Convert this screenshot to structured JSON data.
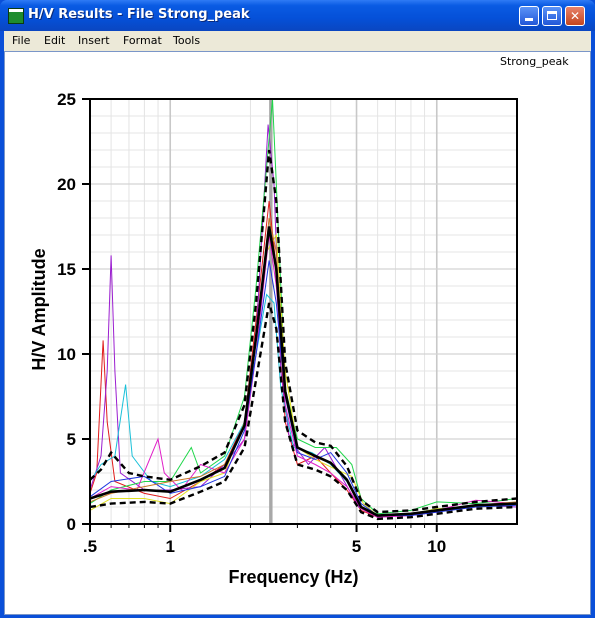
{
  "window": {
    "title": "H/V Results - File Strong_peak",
    "icons": {
      "app": "graph-app-icon",
      "minimize": "minimize-icon",
      "maximize": "maximize-icon",
      "close": "close-icon"
    }
  },
  "menu": {
    "items": [
      "File",
      "Edit",
      "Insert",
      "Format",
      "Tools"
    ]
  },
  "file_label": "Strong_peak",
  "colors": {
    "titlebar": "#0550d8",
    "mean": "#000000",
    "peak_band": "#a8a8a8"
  },
  "chart_data": {
    "type": "line",
    "xlabel": "Frequency (Hz)",
    "ylabel": "H/V Amplitude",
    "x_scale": "log",
    "xlim": [
      0.5,
      20
    ],
    "ylim": [
      0,
      25
    ],
    "x_ticks": [
      {
        "value": 0.5,
        "label": ".5"
      },
      {
        "value": 1,
        "label": "1"
      },
      {
        "value": 5,
        "label": "5"
      },
      {
        "value": 10,
        "label": "10"
      }
    ],
    "y_ticks": [
      {
        "value": 0,
        "label": "0"
      },
      {
        "value": 5,
        "label": "5"
      },
      {
        "value": 10,
        "label": "10"
      },
      {
        "value": 15,
        "label": "15"
      },
      {
        "value": 20,
        "label": "20"
      },
      {
        "value": 25,
        "label": "25"
      }
    ],
    "grid": true,
    "peak_band": [
      2.35,
      2.42
    ],
    "windows": [
      {
        "color": "#e01c1c",
        "points": [
          [
            0.5,
            1.8
          ],
          [
            0.53,
            3
          ],
          [
            0.56,
            10.8
          ],
          [
            0.58,
            6
          ],
          [
            0.62,
            2.5
          ],
          [
            0.8,
            1.8
          ],
          [
            1.0,
            1.5
          ],
          [
            1.3,
            2.5
          ],
          [
            1.6,
            3.5
          ],
          [
            1.9,
            6
          ],
          [
            2.1,
            12
          ],
          [
            2.35,
            19
          ],
          [
            2.5,
            15
          ],
          [
            2.7,
            6
          ],
          [
            3.0,
            3.5
          ],
          [
            3.5,
            4
          ],
          [
            4.0,
            3
          ],
          [
            4.6,
            2
          ],
          [
            5.2,
            0.8
          ],
          [
            6,
            0.4
          ],
          [
            8,
            0.6
          ],
          [
            10,
            0.8
          ],
          [
            14,
            1.0
          ],
          [
            20,
            1.2
          ]
        ]
      },
      {
        "color": "#9b1ed0",
        "points": [
          [
            0.5,
            2
          ],
          [
            0.55,
            4
          ],
          [
            0.58,
            9
          ],
          [
            0.6,
            15.8
          ],
          [
            0.62,
            9
          ],
          [
            0.65,
            3
          ],
          [
            0.8,
            2
          ],
          [
            1.0,
            2
          ],
          [
            1.3,
            2.2
          ],
          [
            1.6,
            3.5
          ],
          [
            1.9,
            5
          ],
          [
            2.1,
            11
          ],
          [
            2.33,
            23.5
          ],
          [
            2.45,
            20
          ],
          [
            2.6,
            9
          ],
          [
            2.8,
            5
          ],
          [
            3.3,
            3.5
          ],
          [
            3.8,
            4.5
          ],
          [
            4.5,
            2.5
          ],
          [
            5.1,
            1
          ],
          [
            6,
            0.4
          ],
          [
            8,
            0.5
          ],
          [
            10,
            0.7
          ],
          [
            14,
            1.1
          ],
          [
            20,
            1.0
          ]
        ]
      },
      {
        "color": "#19c0d8",
        "points": [
          [
            0.5,
            2.5
          ],
          [
            0.55,
            3.5
          ],
          [
            0.62,
            4
          ],
          [
            0.68,
            8.2
          ],
          [
            0.72,
            4
          ],
          [
            0.85,
            2.5
          ],
          [
            1.0,
            2.2
          ],
          [
            1.3,
            2.8
          ],
          [
            1.6,
            3.8
          ],
          [
            1.9,
            6
          ],
          [
            2.1,
            10
          ],
          [
            2.3,
            13.5
          ],
          [
            2.45,
            13
          ],
          [
            2.6,
            8
          ],
          [
            2.9,
            4.5
          ],
          [
            3.4,
            4.2
          ],
          [
            4.0,
            3.5
          ],
          [
            4.6,
            2.5
          ],
          [
            5.2,
            1
          ],
          [
            6,
            0.5
          ],
          [
            8,
            0.6
          ],
          [
            10,
            0.9
          ],
          [
            14,
            1.0
          ],
          [
            20,
            1.3
          ]
        ]
      },
      {
        "color": "#1fd64a",
        "points": [
          [
            0.5,
            1.2
          ],
          [
            0.6,
            2
          ],
          [
            0.8,
            2.5
          ],
          [
            1.0,
            2.5
          ],
          [
            1.2,
            4.5
          ],
          [
            1.3,
            3
          ],
          [
            1.6,
            4
          ],
          [
            1.9,
            7.5
          ],
          [
            2.1,
            14
          ],
          [
            2.3,
            21
          ],
          [
            2.42,
            25
          ],
          [
            2.55,
            17
          ],
          [
            2.7,
            8
          ],
          [
            3.0,
            5
          ],
          [
            3.5,
            4.5
          ],
          [
            4.2,
            4.5
          ],
          [
            4.8,
            3.5
          ],
          [
            5.2,
            1.5
          ],
          [
            6,
            0.6
          ],
          [
            8,
            0.8
          ],
          [
            10,
            1.3
          ],
          [
            14,
            1.2
          ],
          [
            20,
            1.5
          ]
        ]
      },
      {
        "color": "#e0e020",
        "points": [
          [
            0.5,
            0.8
          ],
          [
            0.6,
            1.5
          ],
          [
            0.8,
            1.5
          ],
          [
            1.0,
            1.2
          ],
          [
            1.3,
            2.5
          ],
          [
            1.6,
            3
          ],
          [
            1.9,
            6
          ],
          [
            2.1,
            11
          ],
          [
            2.3,
            16
          ],
          [
            2.5,
            17
          ],
          [
            2.7,
            9
          ],
          [
            3.0,
            4.5
          ],
          [
            3.5,
            3.8
          ],
          [
            4.2,
            3.2
          ],
          [
            4.8,
            2.8
          ],
          [
            5.3,
            1.2
          ],
          [
            6,
            0.5
          ],
          [
            8,
            0.6
          ],
          [
            10,
            0.9
          ],
          [
            14,
            1.0
          ],
          [
            20,
            1.1
          ]
        ]
      },
      {
        "color": "#e020c8",
        "points": [
          [
            0.5,
            1.5
          ],
          [
            0.6,
            2.2
          ],
          [
            0.75,
            2
          ],
          [
            0.9,
            5
          ],
          [
            0.95,
            3
          ],
          [
            1.1,
            2
          ],
          [
            1.3,
            3.5
          ],
          [
            1.6,
            3
          ],
          [
            1.9,
            5
          ],
          [
            2.1,
            10
          ],
          [
            2.35,
            17
          ],
          [
            2.5,
            14
          ],
          [
            2.7,
            7
          ],
          [
            3.0,
            4
          ],
          [
            3.5,
            3.5
          ],
          [
            4.0,
            3
          ],
          [
            4.6,
            2.2
          ],
          [
            5.2,
            0.9
          ],
          [
            6,
            0.4
          ],
          [
            8,
            0.5
          ],
          [
            10,
            0.8
          ],
          [
            14,
            1.4
          ],
          [
            20,
            1.2
          ]
        ]
      },
      {
        "color": "#2038e0",
        "points": [
          [
            0.5,
            1.6
          ],
          [
            0.6,
            2.5
          ],
          [
            0.8,
            2.8
          ],
          [
            1.0,
            1.8
          ],
          [
            1.3,
            2.2
          ],
          [
            1.6,
            2.8
          ],
          [
            1.9,
            5.5
          ],
          [
            2.1,
            10
          ],
          [
            2.35,
            15.5
          ],
          [
            2.5,
            13
          ],
          [
            2.7,
            7.5
          ],
          [
            3.0,
            4.2
          ],
          [
            3.5,
            3.8
          ],
          [
            4.0,
            4.2
          ],
          [
            4.6,
            3
          ],
          [
            5.2,
            1.2
          ],
          [
            6,
            0.5
          ],
          [
            8,
            0.5
          ],
          [
            10,
            0.7
          ],
          [
            14,
            1.0
          ],
          [
            20,
            1.1
          ]
        ]
      },
      {
        "color": "#c87828",
        "points": [
          [
            0.5,
            1.3
          ],
          [
            0.6,
            1.8
          ],
          [
            0.8,
            2.2
          ],
          [
            1.0,
            2.5
          ],
          [
            1.3,
            2.8
          ],
          [
            1.6,
            3.5
          ],
          [
            1.9,
            5.8
          ],
          [
            2.1,
            11
          ],
          [
            2.35,
            18
          ],
          [
            2.5,
            16
          ],
          [
            2.7,
            8
          ],
          [
            3.0,
            4.5
          ],
          [
            3.5,
            4
          ],
          [
            4.0,
            3.6
          ],
          [
            4.6,
            2.6
          ],
          [
            5.2,
            1.0
          ],
          [
            6,
            0.5
          ],
          [
            8,
            0.6
          ],
          [
            10,
            0.8
          ],
          [
            14,
            1.1
          ],
          [
            20,
            1.3
          ]
        ]
      }
    ],
    "mean_curve": {
      "points": [
        [
          0.5,
          1.5
        ],
        [
          0.6,
          1.9
        ],
        [
          0.8,
          2.0
        ],
        [
          1.0,
          1.9
        ],
        [
          1.3,
          2.6
        ],
        [
          1.6,
          3.3
        ],
        [
          1.9,
          5.8
        ],
        [
          2.1,
          11
        ],
        [
          2.35,
          17.5
        ],
        [
          2.5,
          15
        ],
        [
          2.7,
          7.8
        ],
        [
          3.0,
          4.5
        ],
        [
          3.5,
          4.0
        ],
        [
          4.0,
          3.6
        ],
        [
          4.6,
          2.6
        ],
        [
          5.2,
          1.0
        ],
        [
          6,
          0.5
        ],
        [
          8,
          0.6
        ],
        [
          10,
          0.8
        ],
        [
          14,
          1.1
        ],
        [
          20,
          1.2
        ]
      ]
    },
    "std_upper": {
      "points": [
        [
          0.5,
          2.6
        ],
        [
          0.55,
          3.2
        ],
        [
          0.6,
          4.2
        ],
        [
          0.7,
          3
        ],
        [
          0.8,
          2.8
        ],
        [
          1.0,
          2.6
        ],
        [
          1.3,
          3.4
        ],
        [
          1.6,
          4.2
        ],
        [
          1.9,
          7
        ],
        [
          2.1,
          13
        ],
        [
          2.35,
          22
        ],
        [
          2.5,
          19
        ],
        [
          2.7,
          9.5
        ],
        [
          3.0,
          5.5
        ],
        [
          3.5,
          4.8
        ],
        [
          4.0,
          4.6
        ],
        [
          4.6,
          3.4
        ],
        [
          5.2,
          1.4
        ],
        [
          6,
          0.7
        ],
        [
          8,
          0.8
        ],
        [
          10,
          1.0
        ],
        [
          14,
          1.3
        ],
        [
          20,
          1.5
        ]
      ]
    },
    "std_lower": {
      "points": [
        [
          0.5,
          1.0
        ],
        [
          0.6,
          1.2
        ],
        [
          0.8,
          1.3
        ],
        [
          1.0,
          1.2
        ],
        [
          1.3,
          1.9
        ],
        [
          1.6,
          2.5
        ],
        [
          1.9,
          4.5
        ],
        [
          2.1,
          8.5
        ],
        [
          2.35,
          13
        ],
        [
          2.5,
          11.5
        ],
        [
          2.7,
          6
        ],
        [
          3.0,
          3.5
        ],
        [
          3.5,
          3.2
        ],
        [
          4.0,
          2.8
        ],
        [
          4.6,
          2.0
        ],
        [
          5.2,
          0.7
        ],
        [
          6,
          0.3
        ],
        [
          8,
          0.4
        ],
        [
          10,
          0.6
        ],
        [
          14,
          0.9
        ],
        [
          20,
          1.0
        ]
      ]
    }
  }
}
